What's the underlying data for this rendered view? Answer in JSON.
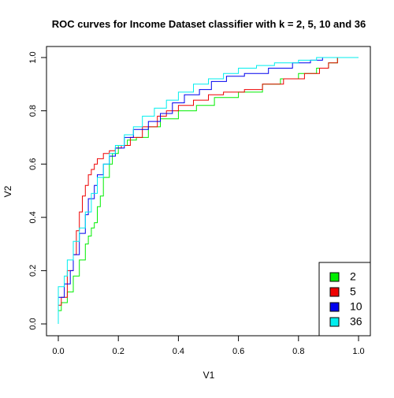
{
  "chart_data": {
    "type": "line",
    "title": "ROC curves for Income Dataset classifier with k = 2, 5, 10 and 36",
    "xlabel": "V1",
    "ylabel": "V2",
    "xlim": [
      0,
      1
    ],
    "ylim": [
      0,
      1
    ],
    "x_ticks": [
      "0.0",
      "0.2",
      "0.4",
      "0.6",
      "0.8",
      "1.0"
    ],
    "y_ticks": [
      "0.0",
      "0.2",
      "0.4",
      "0.6",
      "0.8",
      "1.0"
    ],
    "grid": false,
    "legend_position": "bottom-right",
    "series": [
      {
        "name": "2",
        "color": "#00ee00",
        "x": [
          0.0,
          0.0,
          0.01,
          0.01,
          0.03,
          0.03,
          0.05,
          0.05,
          0.07,
          0.07,
          0.09,
          0.09,
          0.1,
          0.1,
          0.11,
          0.11,
          0.12,
          0.12,
          0.13,
          0.13,
          0.14,
          0.14,
          0.15,
          0.15,
          0.17,
          0.17,
          0.18,
          0.18,
          0.2,
          0.2,
          0.23,
          0.23,
          0.26,
          0.26,
          0.3,
          0.3,
          0.34,
          0.34,
          0.4,
          0.4,
          0.46,
          0.46,
          0.52,
          0.52,
          0.6,
          0.6,
          0.68,
          0.68,
          0.74,
          0.74,
          0.8,
          0.8,
          0.86,
          0.86,
          0.9,
          0.9,
          0.93,
          0.93,
          1.0
        ],
        "y": [
          0.0,
          0.05,
          0.05,
          0.08,
          0.08,
          0.12,
          0.12,
          0.18,
          0.18,
          0.24,
          0.24,
          0.3,
          0.3,
          0.33,
          0.33,
          0.36,
          0.36,
          0.38,
          0.38,
          0.44,
          0.44,
          0.48,
          0.48,
          0.55,
          0.55,
          0.6,
          0.6,
          0.64,
          0.64,
          0.67,
          0.67,
          0.69,
          0.69,
          0.7,
          0.7,
          0.74,
          0.74,
          0.77,
          0.77,
          0.8,
          0.8,
          0.82,
          0.82,
          0.85,
          0.85,
          0.87,
          0.87,
          0.9,
          0.9,
          0.92,
          0.92,
          0.94,
          0.94,
          0.96,
          0.96,
          0.98,
          0.98,
          1.0,
          1.0
        ]
      },
      {
        "name": "5",
        "color": "#ee0000",
        "x": [
          0.0,
          0.0,
          0.01,
          0.01,
          0.03,
          0.03,
          0.05,
          0.05,
          0.06,
          0.06,
          0.07,
          0.07,
          0.08,
          0.08,
          0.09,
          0.09,
          0.1,
          0.1,
          0.11,
          0.11,
          0.12,
          0.12,
          0.13,
          0.13,
          0.15,
          0.15,
          0.17,
          0.17,
          0.19,
          0.19,
          0.21,
          0.21,
          0.24,
          0.24,
          0.28,
          0.28,
          0.33,
          0.33,
          0.36,
          0.36,
          0.4,
          0.4,
          0.45,
          0.45,
          0.5,
          0.5,
          0.55,
          0.55,
          0.62,
          0.62,
          0.68,
          0.68,
          0.75,
          0.75,
          0.82,
          0.82,
          0.87,
          0.87,
          0.9,
          0.9,
          0.93,
          0.93,
          1.0
        ],
        "y": [
          0.0,
          0.07,
          0.07,
          0.1,
          0.1,
          0.2,
          0.2,
          0.26,
          0.26,
          0.35,
          0.35,
          0.42,
          0.42,
          0.48,
          0.48,
          0.52,
          0.52,
          0.56,
          0.56,
          0.58,
          0.58,
          0.6,
          0.6,
          0.62,
          0.62,
          0.64,
          0.64,
          0.65,
          0.65,
          0.66,
          0.66,
          0.67,
          0.67,
          0.7,
          0.7,
          0.74,
          0.74,
          0.78,
          0.78,
          0.8,
          0.8,
          0.82,
          0.82,
          0.84,
          0.84,
          0.86,
          0.86,
          0.87,
          0.87,
          0.88,
          0.88,
          0.9,
          0.9,
          0.92,
          0.92,
          0.94,
          0.94,
          0.96,
          0.96,
          0.98,
          0.98,
          1.0,
          1.0
        ]
      },
      {
        "name": "10",
        "color": "#0000ee",
        "x": [
          0.0,
          0.0,
          0.02,
          0.02,
          0.04,
          0.04,
          0.05,
          0.05,
          0.07,
          0.07,
          0.09,
          0.09,
          0.1,
          0.1,
          0.12,
          0.12,
          0.13,
          0.13,
          0.15,
          0.15,
          0.17,
          0.17,
          0.19,
          0.19,
          0.22,
          0.22,
          0.25,
          0.25,
          0.3,
          0.3,
          0.34,
          0.34,
          0.38,
          0.38,
          0.42,
          0.42,
          0.47,
          0.47,
          0.51,
          0.51,
          0.56,
          0.56,
          0.62,
          0.62,
          0.7,
          0.7,
          0.78,
          0.78,
          0.84,
          0.84,
          0.88,
          0.88,
          0.91,
          0.91,
          1.0
        ],
        "y": [
          0.0,
          0.1,
          0.1,
          0.15,
          0.15,
          0.2,
          0.2,
          0.26,
          0.26,
          0.34,
          0.34,
          0.41,
          0.41,
          0.47,
          0.47,
          0.52,
          0.52,
          0.56,
          0.56,
          0.6,
          0.6,
          0.63,
          0.63,
          0.66,
          0.66,
          0.7,
          0.7,
          0.73,
          0.73,
          0.76,
          0.76,
          0.79,
          0.79,
          0.83,
          0.83,
          0.86,
          0.86,
          0.88,
          0.88,
          0.91,
          0.91,
          0.93,
          0.93,
          0.94,
          0.94,
          0.96,
          0.96,
          0.98,
          0.98,
          0.99,
          0.99,
          1.0,
          1.0,
          1.0,
          1.0
        ]
      },
      {
        "name": "36",
        "color": "#00eeee",
        "x": [
          0.0,
          0.0,
          0.02,
          0.02,
          0.03,
          0.03,
          0.05,
          0.05,
          0.07,
          0.07,
          0.09,
          0.09,
          0.11,
          0.11,
          0.13,
          0.13,
          0.15,
          0.15,
          0.17,
          0.17,
          0.19,
          0.19,
          0.22,
          0.22,
          0.25,
          0.25,
          0.28,
          0.28,
          0.32,
          0.32,
          0.36,
          0.36,
          0.4,
          0.4,
          0.45,
          0.45,
          0.5,
          0.5,
          0.55,
          0.55,
          0.6,
          0.6,
          0.66,
          0.66,
          0.72,
          0.72,
          0.8,
          0.8,
          0.86,
          0.86,
          0.92,
          1.0
        ],
        "y": [
          0.0,
          0.14,
          0.14,
          0.18,
          0.18,
          0.24,
          0.24,
          0.31,
          0.31,
          0.36,
          0.36,
          0.42,
          0.42,
          0.49,
          0.49,
          0.55,
          0.55,
          0.6,
          0.6,
          0.64,
          0.64,
          0.67,
          0.67,
          0.71,
          0.71,
          0.74,
          0.74,
          0.78,
          0.78,
          0.81,
          0.81,
          0.84,
          0.84,
          0.87,
          0.87,
          0.9,
          0.9,
          0.92,
          0.92,
          0.94,
          0.94,
          0.96,
          0.96,
          0.97,
          0.97,
          0.98,
          0.98,
          0.99,
          0.99,
          1.0,
          1.0,
          1.0
        ]
      }
    ]
  }
}
